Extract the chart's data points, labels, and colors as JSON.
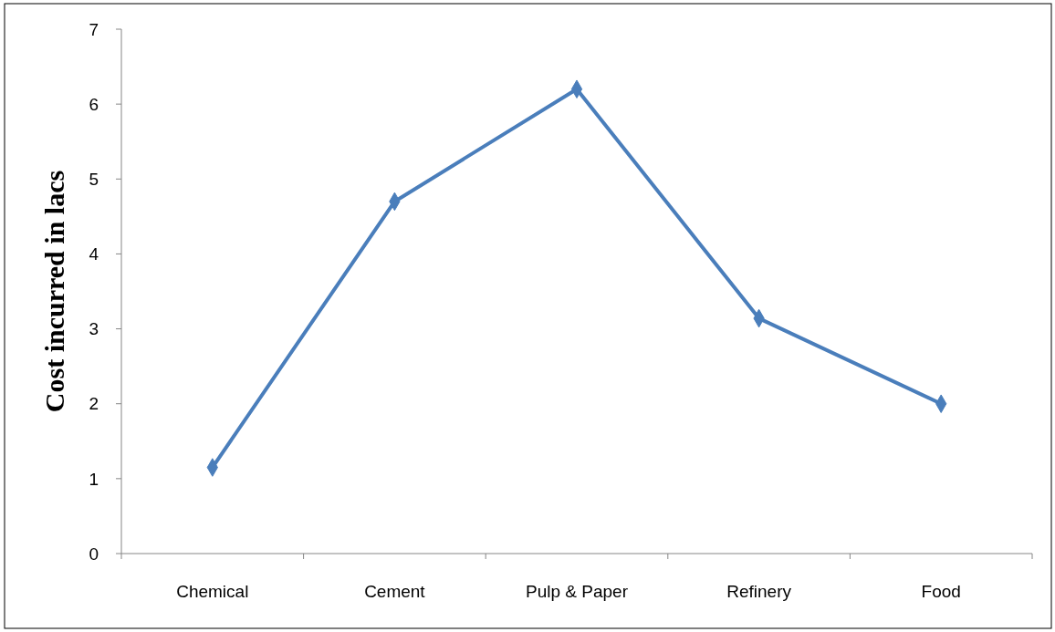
{
  "chart_data": {
    "type": "line",
    "ylabel": "Cost incurred in lacs",
    "categories": [
      "Chemical",
      "Cement",
      "Pulp & Paper",
      "Refinery",
      "Food"
    ],
    "series": [
      {
        "color": "#4a7ebb",
        "values": [
          1.15,
          4.7,
          6.2,
          3.14,
          2.0
        ]
      }
    ],
    "ylim": [
      0,
      7
    ],
    "yticks": [
      0,
      1,
      2,
      3,
      4,
      5,
      6,
      7
    ],
    "grid": false,
    "marker": "diamond",
    "line_style": "solid"
  }
}
